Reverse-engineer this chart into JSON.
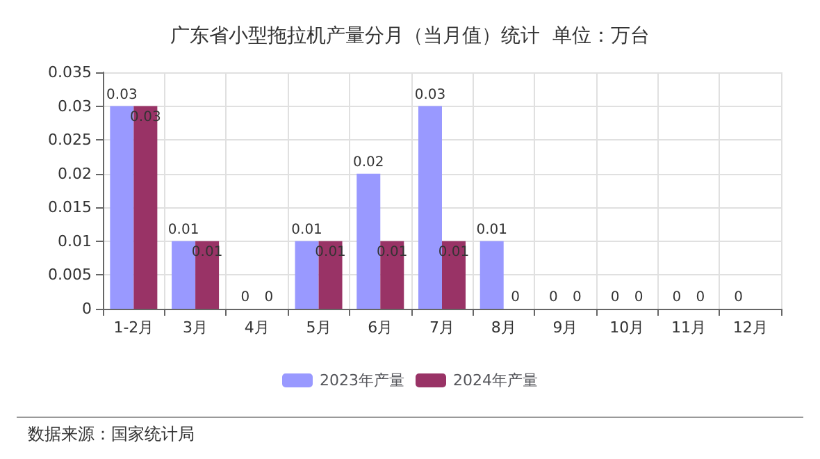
{
  "chart_data": {
    "type": "bar",
    "title": "广东省小型拖拉机产量分月（当月值）统计  单位：万台",
    "categories": [
      "1-2月",
      "3月",
      "4月",
      "5月",
      "6月",
      "7月",
      "8月",
      "9月",
      "10月",
      "11月",
      "12月"
    ],
    "series": [
      {
        "name": "2023年产量",
        "color": "#9999ff",
        "values": [
          0.03,
          0.01,
          0,
          0.01,
          0.02,
          0.03,
          0.01,
          0,
          0,
          0,
          0
        ]
      },
      {
        "name": "2024年产量",
        "color": "#993366",
        "values": [
          0.03,
          0.01,
          0,
          0.01,
          0.01,
          0.01,
          0,
          0,
          0,
          0,
          null
        ]
      }
    ],
    "ylim": [
      0,
      0.035
    ],
    "yticks": [
      0,
      0.005,
      0.01,
      0.015,
      0.02,
      0.025,
      0.03,
      0.035
    ],
    "grid": true,
    "legend": "bottom",
    "data_labels": true,
    "annotations": [
      "数据来源：国家统计局"
    ]
  }
}
